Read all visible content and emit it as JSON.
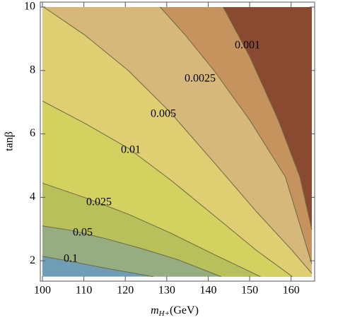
{
  "chart_data": {
    "type": "contour",
    "xlabel": "m",
    "xlabel_sub": "H+",
    "xlabel_unit": "(GeV)",
    "ylabel": "tanβ",
    "xlim": [
      100,
      165
    ],
    "ylim": [
      1.5,
      10
    ],
    "xticks": [
      100,
      110,
      120,
      130,
      140,
      150,
      160
    ],
    "yticks": [
      2,
      4,
      6,
      8,
      10
    ],
    "base_color": "#6e9db5",
    "line_color": "#6b6a45",
    "contours": [
      {
        "level": 0.1,
        "fill": "#95ad80",
        "x": [
          100,
          106.9,
          115.5,
          126.7
        ],
        "y": [
          2.14,
          1.98,
          1.76,
          1.5
        ]
      },
      {
        "level": 0.05,
        "fill": "#b7c05b",
        "x": [
          100,
          106.9,
          115.5,
          124.1,
          132.8,
          143.1
        ],
        "y": [
          3.1,
          2.96,
          2.69,
          2.38,
          2.03,
          1.5
        ]
      },
      {
        "level": 0.025,
        "fill": "#d3d15f",
        "x": [
          100,
          110.3,
          120.7,
          131.0,
          141.4,
          152.6
        ],
        "y": [
          4.45,
          3.99,
          3.47,
          2.87,
          2.2,
          1.5
        ]
      },
      {
        "level": 0.01,
        "fill": "#dfcf72",
        "x": [
          100,
          110.3,
          120.7,
          131.0,
          141.4,
          151.7,
          160.3
        ],
        "y": [
          7.04,
          6.33,
          5.55,
          4.54,
          3.43,
          2.32,
          1.5
        ]
      },
      {
        "level": 0.005,
        "fill": "#d5b87a",
        "x": [
          100.3,
          110.3,
          120.7,
          131.0,
          141.4,
          151.7,
          160.3,
          165
        ],
        "y": [
          10,
          9.11,
          8.0,
          6.66,
          5.1,
          3.54,
          2.32,
          1.6
        ]
      },
      {
        "level": 0.0025,
        "fill": "#c6935e",
        "x": [
          128.4,
          134.5,
          141.4,
          150,
          158.6,
          165
        ],
        "y": [
          10,
          9.11,
          8.0,
          6.44,
          4.65,
          1.9
        ]
      },
      {
        "level": 0.001,
        "fill": "#8a4a31",
        "x": [
          143.6,
          150,
          156.9,
          162.1,
          165
        ],
        "y": [
          10,
          8.44,
          6.44,
          4.65,
          2.98
        ]
      }
    ]
  }
}
